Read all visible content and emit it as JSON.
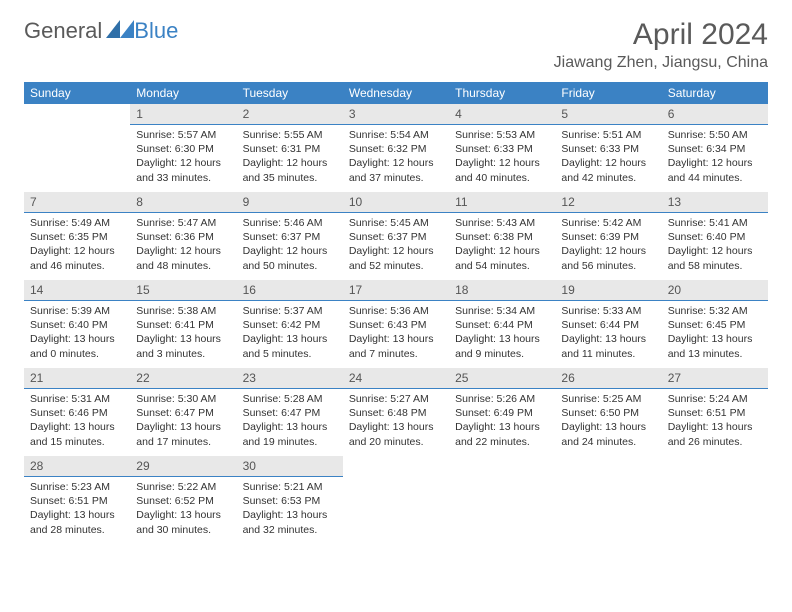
{
  "logo": {
    "text1": "General",
    "text2": "Blue"
  },
  "header": {
    "month": "April 2024",
    "location": "Jiawang Zhen, Jiangsu, China"
  },
  "colors": {
    "header_bg": "#3b82c4",
    "header_fg": "#ffffff",
    "daynum_bg": "#e8e8e8",
    "daynum_border": "#3b82c4",
    "text": "#333333",
    "title": "#5a5a5a"
  },
  "weekdays": [
    "Sunday",
    "Monday",
    "Tuesday",
    "Wednesday",
    "Thursday",
    "Friday",
    "Saturday"
  ],
  "weeks": [
    [
      null,
      {
        "n": "1",
        "sr": "5:57 AM",
        "ss": "6:30 PM",
        "dl": "12 hours and 33 minutes."
      },
      {
        "n": "2",
        "sr": "5:55 AM",
        "ss": "6:31 PM",
        "dl": "12 hours and 35 minutes."
      },
      {
        "n": "3",
        "sr": "5:54 AM",
        "ss": "6:32 PM",
        "dl": "12 hours and 37 minutes."
      },
      {
        "n": "4",
        "sr": "5:53 AM",
        "ss": "6:33 PM",
        "dl": "12 hours and 40 minutes."
      },
      {
        "n": "5",
        "sr": "5:51 AM",
        "ss": "6:33 PM",
        "dl": "12 hours and 42 minutes."
      },
      {
        "n": "6",
        "sr": "5:50 AM",
        "ss": "6:34 PM",
        "dl": "12 hours and 44 minutes."
      }
    ],
    [
      {
        "n": "7",
        "sr": "5:49 AM",
        "ss": "6:35 PM",
        "dl": "12 hours and 46 minutes."
      },
      {
        "n": "8",
        "sr": "5:47 AM",
        "ss": "6:36 PM",
        "dl": "12 hours and 48 minutes."
      },
      {
        "n": "9",
        "sr": "5:46 AM",
        "ss": "6:37 PM",
        "dl": "12 hours and 50 minutes."
      },
      {
        "n": "10",
        "sr": "5:45 AM",
        "ss": "6:37 PM",
        "dl": "12 hours and 52 minutes."
      },
      {
        "n": "11",
        "sr": "5:43 AM",
        "ss": "6:38 PM",
        "dl": "12 hours and 54 minutes."
      },
      {
        "n": "12",
        "sr": "5:42 AM",
        "ss": "6:39 PM",
        "dl": "12 hours and 56 minutes."
      },
      {
        "n": "13",
        "sr": "5:41 AM",
        "ss": "6:40 PM",
        "dl": "12 hours and 58 minutes."
      }
    ],
    [
      {
        "n": "14",
        "sr": "5:39 AM",
        "ss": "6:40 PM",
        "dl": "13 hours and 0 minutes."
      },
      {
        "n": "15",
        "sr": "5:38 AM",
        "ss": "6:41 PM",
        "dl": "13 hours and 3 minutes."
      },
      {
        "n": "16",
        "sr": "5:37 AM",
        "ss": "6:42 PM",
        "dl": "13 hours and 5 minutes."
      },
      {
        "n": "17",
        "sr": "5:36 AM",
        "ss": "6:43 PM",
        "dl": "13 hours and 7 minutes."
      },
      {
        "n": "18",
        "sr": "5:34 AM",
        "ss": "6:44 PM",
        "dl": "13 hours and 9 minutes."
      },
      {
        "n": "19",
        "sr": "5:33 AM",
        "ss": "6:44 PM",
        "dl": "13 hours and 11 minutes."
      },
      {
        "n": "20",
        "sr": "5:32 AM",
        "ss": "6:45 PM",
        "dl": "13 hours and 13 minutes."
      }
    ],
    [
      {
        "n": "21",
        "sr": "5:31 AM",
        "ss": "6:46 PM",
        "dl": "13 hours and 15 minutes."
      },
      {
        "n": "22",
        "sr": "5:30 AM",
        "ss": "6:47 PM",
        "dl": "13 hours and 17 minutes."
      },
      {
        "n": "23",
        "sr": "5:28 AM",
        "ss": "6:47 PM",
        "dl": "13 hours and 19 minutes."
      },
      {
        "n": "24",
        "sr": "5:27 AM",
        "ss": "6:48 PM",
        "dl": "13 hours and 20 minutes."
      },
      {
        "n": "25",
        "sr": "5:26 AM",
        "ss": "6:49 PM",
        "dl": "13 hours and 22 minutes."
      },
      {
        "n": "26",
        "sr": "5:25 AM",
        "ss": "6:50 PM",
        "dl": "13 hours and 24 minutes."
      },
      {
        "n": "27",
        "sr": "5:24 AM",
        "ss": "6:51 PM",
        "dl": "13 hours and 26 minutes."
      }
    ],
    [
      {
        "n": "28",
        "sr": "5:23 AM",
        "ss": "6:51 PM",
        "dl": "13 hours and 28 minutes."
      },
      {
        "n": "29",
        "sr": "5:22 AM",
        "ss": "6:52 PM",
        "dl": "13 hours and 30 minutes."
      },
      {
        "n": "30",
        "sr": "5:21 AM",
        "ss": "6:53 PM",
        "dl": "13 hours and 32 minutes."
      },
      null,
      null,
      null,
      null
    ]
  ],
  "labels": {
    "sunrise": "Sunrise:",
    "sunset": "Sunset:",
    "daylight": "Daylight:"
  }
}
